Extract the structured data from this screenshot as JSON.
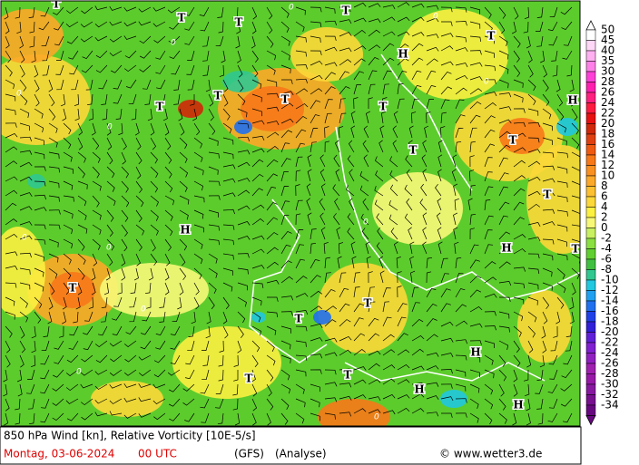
{
  "map": {
    "pressure_labels": [
      "T",
      "T",
      "T",
      "T",
      "T",
      "H",
      "H",
      "T",
      "T",
      "T",
      "T",
      "T",
      "T",
      "T",
      "H",
      "H",
      "T",
      "T",
      "T",
      "T",
      "H",
      "T",
      "T",
      "H",
      "H"
    ],
    "contour_labels": [
      "0",
      "0",
      "0",
      "0",
      "0",
      "0",
      "0",
      "0",
      "0",
      "0",
      "0",
      "0"
    ]
  },
  "colorbar": {
    "labels": [
      "50",
      "45",
      "40",
      "35",
      "30",
      "28",
      "26",
      "24",
      "22",
      "20",
      "18",
      "16",
      "14",
      "12",
      "10",
      "8",
      "6",
      "4",
      "2",
      "0",
      "-2",
      "-4",
      "-6",
      "-8",
      "-10",
      "-12",
      "-14",
      "-16",
      "-18",
      "-20",
      "-22",
      "-24",
      "-26",
      "-28",
      "-30",
      "-32",
      "-34"
    ],
    "colors": [
      "#ffffff",
      "#ffd8f8",
      "#ffb0f0",
      "#ff80e8",
      "#ff40d8",
      "#ff20b0",
      "#ff2080",
      "#ff1a40",
      "#e81010",
      "#d02808",
      "#e04010",
      "#f05a10",
      "#f87818",
      "#fa9020",
      "#fca828",
      "#fcc030",
      "#fcd838",
      "#fcf040",
      "#f8f878",
      "#c8f060",
      "#8ae040",
      "#60d030",
      "#40c040",
      "#30c890",
      "#20c8e0",
      "#20a0f0",
      "#2070f0",
      "#2040e8",
      "#3020d8",
      "#6020d8",
      "#8020d0",
      "#9020c0",
      "#a020b0",
      "#9818a8",
      "#8818a0",
      "#781090",
      "#680880"
    ]
  },
  "footer": {
    "title": "850 hPa Wind [kn], Relative Vorticity [10E-5/s]",
    "date": "Montag, 03-06-2024",
    "time": "00 UTC",
    "model": "(GFS)",
    "run": "(Analyse)",
    "copyright": "© www.wetter3.de"
  }
}
